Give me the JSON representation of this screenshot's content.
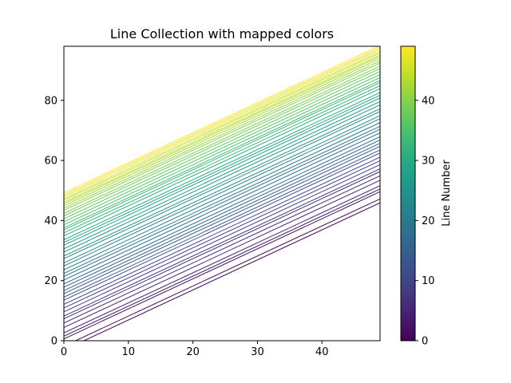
{
  "chart_data": {
    "type": "line",
    "title": "Line Collection with mapped colors",
    "xlabel": "",
    "ylabel": "",
    "xlim": [
      0,
      49
    ],
    "ylim": [
      0,
      98
    ],
    "x_ticks": [
      0,
      10,
      20,
      30,
      40
    ],
    "y_ticks": [
      0,
      20,
      40,
      60,
      80
    ],
    "grid": false,
    "line_count": 50,
    "x_range": [
      0,
      49
    ],
    "lines_y_at_x0": [
      -3.1,
      -1.8,
      0.6,
      1.5,
      2.6,
      4.4,
      5.9,
      7.3,
      8.2,
      9.6,
      10.9,
      12.1,
      13.5,
      14.5,
      15.7,
      16.7,
      17.8,
      18.9,
      20.2,
      21.4,
      22.4,
      23.6,
      24.9,
      25.9,
      27.3,
      28.2,
      29.5,
      30.6,
      31.8,
      32.7,
      33.6,
      34.9,
      35.9,
      36.9,
      37.6,
      38.6,
      39.6,
      40.6,
      41.6,
      42.4,
      43.4,
      44.1,
      44.9,
      45.6,
      46.1,
      46.8,
      47.3,
      48.0,
      48.6,
      49.2
    ],
    "line_slope": 1.0,
    "colormap": "viridis",
    "colormap_stops": [
      "#440154",
      "#482475",
      "#414487",
      "#355f8d",
      "#2a788e",
      "#21918c",
      "#22a884",
      "#44bf70",
      "#7ad151",
      "#bddf26",
      "#fde725"
    ],
    "colorbar": {
      "label": "Line Number",
      "range": [
        0,
        49
      ],
      "ticks": [
        0,
        10,
        20,
        30,
        40
      ]
    }
  }
}
